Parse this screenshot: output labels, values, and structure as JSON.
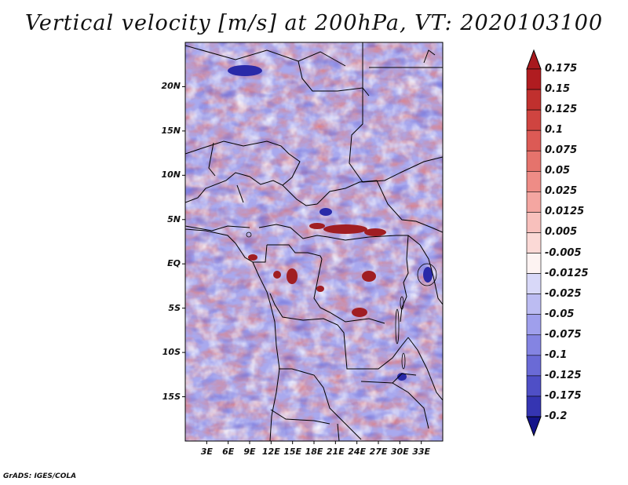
{
  "title": "Vertical velocity [m/s] at 200hPa, VT: 2020103100",
  "footer": "GrADS: IGES/COLA",
  "map": {
    "lon_range": [
      0,
      36
    ],
    "lat_range": [
      -20,
      25
    ],
    "lat_ticks": [
      {
        "label": "20N",
        "value": 20
      },
      {
        "label": "15N",
        "value": 15
      },
      {
        "label": "10N",
        "value": 10
      },
      {
        "label": "5N",
        "value": 5
      },
      {
        "label": "EQ",
        "value": 0
      },
      {
        "label": "5S",
        "value": -5
      },
      {
        "label": "10S",
        "value": -10
      },
      {
        "label": "15S",
        "value": -15
      }
    ],
    "lon_ticks": [
      {
        "label": "3E",
        "value": 3
      },
      {
        "label": "6E",
        "value": 6
      },
      {
        "label": "9E",
        "value": 9
      },
      {
        "label": "12E",
        "value": 12
      },
      {
        "label": "15E",
        "value": 15
      },
      {
        "label": "18E",
        "value": 18
      },
      {
        "label": "21E",
        "value": 21
      },
      {
        "label": "24E",
        "value": 24
      },
      {
        "label": "27E",
        "value": 27
      },
      {
        "label": "30E",
        "value": 30
      },
      {
        "label": "33E",
        "value": 33
      }
    ]
  },
  "colorbar": {
    "levels": [
      {
        "label": "0.175",
        "color": "#b01c20"
      },
      {
        "label": "0.15",
        "color": "#c0302e"
      },
      {
        "label": "0.125",
        "color": "#cf4440"
      },
      {
        "label": "0.1",
        "color": "#dc5a55"
      },
      {
        "label": "0.075",
        "color": "#e5736c"
      },
      {
        "label": "0.05",
        "color": "#ee8c86"
      },
      {
        "label": "0.025",
        "color": "#f4a6a1"
      },
      {
        "label": "0.0125",
        "color": "#f8c0bc"
      },
      {
        "label": "0.005",
        "color": "#fbd9d6"
      },
      {
        "label": "-0.005",
        "color": "#fdf3f2"
      },
      {
        "label": "-0.0125",
        "color": "#d8d8f8"
      },
      {
        "label": "-0.025",
        "color": "#bcbcf2"
      },
      {
        "label": "-0.05",
        "color": "#9f9fec"
      },
      {
        "label": "-0.075",
        "color": "#8484e2"
      },
      {
        "label": "-0.1",
        "color": "#6a6ad6"
      },
      {
        "label": "-0.125",
        "color": "#4f4fc6"
      },
      {
        "label": "-0.175",
        "color": "#3535b2"
      },
      {
        "label": "-0.2",
        "color": "#1f1f9a"
      }
    ],
    "top_triangle_color": "#a8191e",
    "bottom_triangle_color": "#14148a"
  }
}
